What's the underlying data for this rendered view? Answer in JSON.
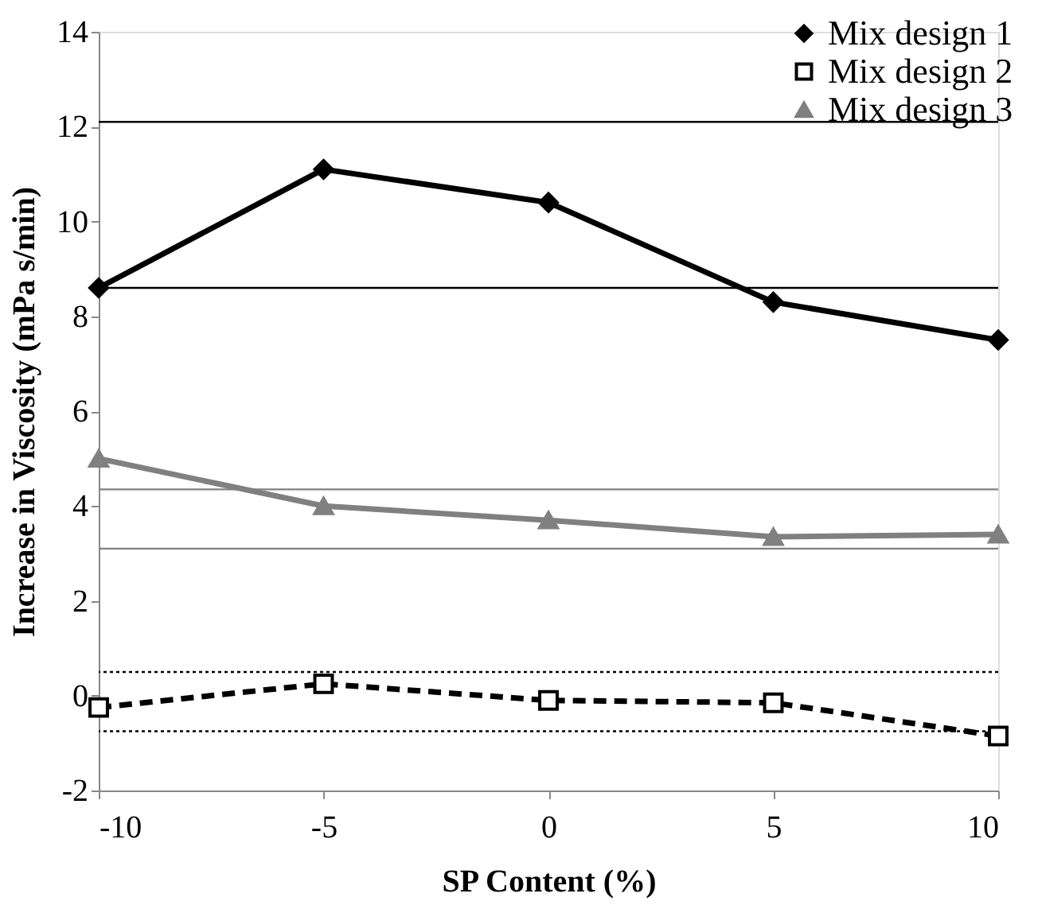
{
  "chart_data": {
    "type": "line",
    "xlabel": "SP Content (%)",
    "ylabel": "Increase in Viscosity (mPa s/min)",
    "x": [
      -10,
      -5,
      0,
      5,
      10
    ],
    "series": [
      {
        "name": "Mix design 1",
        "color": "#000000",
        "marker": "diamond",
        "line_style": "solid",
        "values": [
          8.6,
          11.1,
          10.4,
          8.3,
          7.5
        ]
      },
      {
        "name": "Mix design 2",
        "color": "#000000",
        "marker": "square",
        "line_style": "dashed",
        "values": [
          -0.25,
          0.25,
          -0.1,
          -0.15,
          -0.85
        ]
      },
      {
        "name": "Mix design 3",
        "color": "#808080",
        "marker": "triangle",
        "line_style": "solid",
        "values": [
          5.0,
          4.0,
          3.7,
          3.35,
          3.4
        ]
      }
    ],
    "xlim": [
      -10,
      10
    ],
    "xticks": [
      -10,
      -5,
      0,
      5,
      10
    ],
    "ylim": [
      -2,
      14
    ],
    "yticks": [
      -2,
      0,
      2,
      4,
      6,
      8,
      10,
      12,
      14
    ],
    "ref_lines": [
      {
        "axis": "y",
        "value": 12.1,
        "color": "#000000",
        "line_style": "solid"
      },
      {
        "axis": "y",
        "value": 8.6,
        "color": "#000000",
        "line_style": "solid"
      },
      {
        "axis": "y",
        "value": 4.35,
        "color": "#808080",
        "line_style": "solid"
      },
      {
        "axis": "y",
        "value": 3.1,
        "color": "#808080",
        "line_style": "solid"
      },
      {
        "axis": "y",
        "value": 0.5,
        "color": "#000000",
        "line_style": "dotted"
      },
      {
        "axis": "y",
        "value": -0.75,
        "color": "#000000",
        "line_style": "dotted"
      }
    ],
    "grid": false,
    "legend": "top right"
  }
}
